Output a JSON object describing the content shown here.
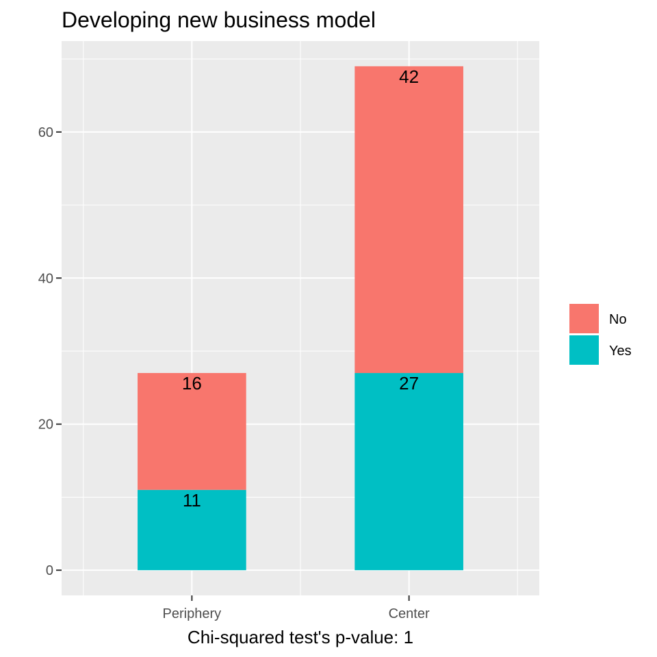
{
  "chart_data": {
    "type": "bar",
    "stacked": true,
    "title": "Developing new business model",
    "xlabel": "Chi-squared test's p-value: 1",
    "ylabel": "",
    "categories": [
      "Periphery",
      "Center"
    ],
    "series": [
      {
        "name": "Yes",
        "values": [
          11,
          27
        ],
        "color": "#00BFC4"
      },
      {
        "name": "No",
        "values": [
          16,
          42
        ],
        "color": "#F8766D"
      }
    ],
    "ylim": [
      -3.45,
      72.45
    ],
    "y_ticks": [
      0,
      20,
      40,
      60
    ],
    "grid": true,
    "legend_position": "right",
    "panel_background": "#EBEBEB",
    "grid_color": "#FFFFFF"
  }
}
